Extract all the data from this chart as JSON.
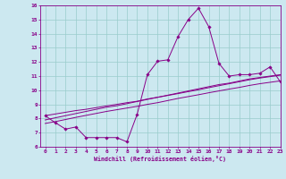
{
  "xlabel": "Windchill (Refroidissement éolien,°C)",
  "background_color": "#cce8f0",
  "grid_color": "#99cccc",
  "line_color": "#880088",
  "x_data": [
    0,
    1,
    2,
    3,
    4,
    5,
    6,
    7,
    8,
    9,
    10,
    11,
    12,
    13,
    14,
    15,
    16,
    17,
    18,
    19,
    20,
    21,
    22,
    23
  ],
  "y_main": [
    8.2,
    7.7,
    7.25,
    7.4,
    6.65,
    6.65,
    6.65,
    6.65,
    6.35,
    8.3,
    11.1,
    12.05,
    12.15,
    13.8,
    15.0,
    15.8,
    14.5,
    11.9,
    11.0,
    11.1,
    11.1,
    11.2,
    11.65,
    10.6
  ],
  "y_linear1": [
    7.9,
    8.05,
    8.2,
    8.35,
    8.5,
    8.65,
    8.8,
    8.9,
    9.05,
    9.2,
    9.35,
    9.5,
    9.65,
    9.8,
    9.95,
    10.1,
    10.25,
    10.4,
    10.5,
    10.65,
    10.8,
    10.9,
    11.0,
    11.1
  ],
  "y_linear2": [
    8.2,
    8.32,
    8.44,
    8.56,
    8.65,
    8.77,
    8.89,
    9.0,
    9.12,
    9.22,
    9.38,
    9.5,
    9.63,
    9.76,
    9.9,
    10.03,
    10.18,
    10.32,
    10.46,
    10.6,
    10.74,
    10.86,
    10.96,
    11.06
  ],
  "y_linear3": [
    7.65,
    7.78,
    7.93,
    8.08,
    8.22,
    8.36,
    8.5,
    8.62,
    8.74,
    8.86,
    9.0,
    9.12,
    9.27,
    9.42,
    9.55,
    9.68,
    9.82,
    9.95,
    10.08,
    10.2,
    10.34,
    10.46,
    10.56,
    10.66
  ],
  "ylim": [
    6,
    16
  ],
  "xlim": [
    -0.5,
    23
  ],
  "yticks": [
    6,
    7,
    8,
    9,
    10,
    11,
    12,
    13,
    14,
    15,
    16
  ],
  "xticks": [
    0,
    1,
    2,
    3,
    4,
    5,
    6,
    7,
    8,
    9,
    10,
    11,
    12,
    13,
    14,
    15,
    16,
    17,
    18,
    19,
    20,
    21,
    22,
    23
  ]
}
